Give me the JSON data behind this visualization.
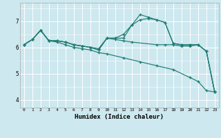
{
  "xlabel": "Humidex (Indice chaleur)",
  "xlim": [
    -0.5,
    23.5
  ],
  "ylim": [
    3.7,
    7.7
  ],
  "yticks": [
    4,
    5,
    6,
    7
  ],
  "xticks": [
    0,
    1,
    2,
    3,
    4,
    5,
    6,
    7,
    8,
    9,
    10,
    11,
    12,
    13,
    14,
    15,
    16,
    17,
    18,
    19,
    20,
    21,
    22,
    23
  ],
  "bg_color": "#cde8ef",
  "grid_color": "#ffffff",
  "line_color": "#1e7b70",
  "lines": [
    {
      "x": [
        0,
        1,
        2,
        3,
        4,
        5,
        6,
        7,
        8,
        9,
        10,
        12,
        14,
        16,
        18,
        20,
        21,
        22,
        23
      ],
      "y": [
        6.1,
        6.3,
        6.65,
        6.25,
        6.2,
        6.1,
        6.0,
        5.95,
        5.9,
        5.8,
        5.75,
        5.6,
        5.45,
        5.3,
        5.15,
        4.85,
        4.7,
        4.35,
        4.3
      ]
    },
    {
      "x": [
        0,
        1,
        2,
        3,
        4,
        5,
        6,
        7,
        8,
        9,
        10,
        11,
        12,
        13,
        16,
        17,
        18,
        19,
        20,
        21,
        22,
        23
      ],
      "y": [
        6.1,
        6.3,
        6.65,
        6.25,
        6.25,
        6.2,
        6.1,
        6.05,
        6.0,
        5.95,
        6.35,
        6.3,
        6.25,
        6.2,
        6.1,
        6.1,
        6.1,
        6.05,
        6.05,
        6.1,
        5.85,
        4.3
      ]
    },
    {
      "x": [
        0,
        1,
        2,
        3,
        4,
        5,
        6,
        7,
        8,
        9,
        10,
        11,
        12,
        13,
        14,
        15,
        16,
        17,
        18,
        19,
        20,
        21,
        22,
        23
      ],
      "y": [
        6.1,
        6.3,
        6.65,
        6.25,
        6.25,
        6.2,
        6.1,
        6.05,
        6.0,
        5.9,
        6.35,
        6.35,
        6.35,
        6.85,
        7.05,
        7.1,
        7.05,
        6.95,
        6.15,
        6.1,
        6.1,
        6.1,
        5.85,
        4.3
      ]
    },
    {
      "x": [
        0,
        1,
        2,
        3,
        4,
        5,
        6,
        7,
        8,
        9,
        10,
        11,
        12,
        13,
        14,
        15,
        16,
        17,
        18,
        19,
        20,
        21,
        22,
        23
      ],
      "y": [
        6.1,
        6.3,
        6.65,
        6.25,
        6.25,
        6.2,
        6.1,
        6.05,
        6.0,
        5.9,
        6.35,
        6.35,
        6.5,
        6.85,
        7.25,
        7.15,
        7.05,
        6.95,
        6.15,
        6.1,
        6.1,
        6.1,
        5.85,
        4.3
      ]
    }
  ]
}
